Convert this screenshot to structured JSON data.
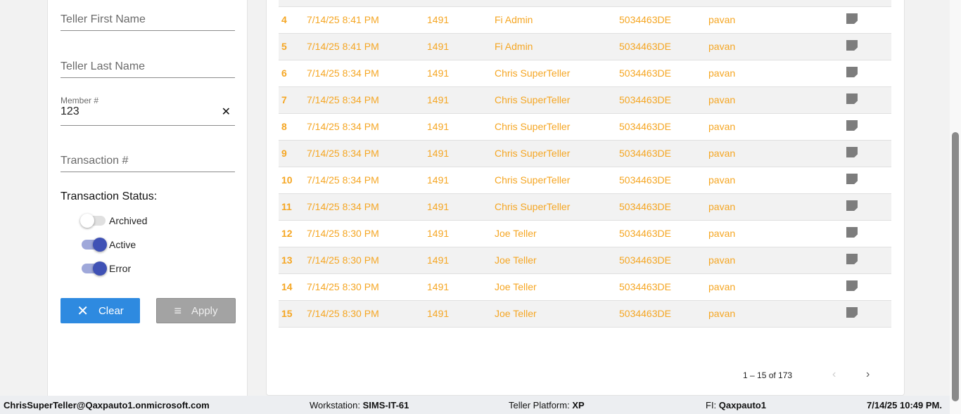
{
  "filters": {
    "teller_first_name": {
      "placeholder": "Teller First Name"
    },
    "teller_last_name": {
      "placeholder": "Teller Last Name"
    },
    "member": {
      "label": "Member #",
      "value": "123"
    },
    "transaction": {
      "placeholder": "Transaction #"
    },
    "status_title": "Transaction Status:",
    "toggles": [
      {
        "label": "Archived",
        "on": false
      },
      {
        "label": "Active",
        "on": true
      },
      {
        "label": "Error",
        "on": true
      }
    ],
    "clear_label": "Clear",
    "apply_label": "Apply"
  },
  "rows": [
    [
      "",
      "",
      "",
      "",
      "",
      "",
      ""
    ],
    [
      "4",
      "7/14/25 8:41 PM",
      "1491",
      "Fi Admin",
      "5034463DE",
      "pavan"
    ],
    [
      "5",
      "7/14/25 8:41 PM",
      "1491",
      "Fi Admin",
      "5034463DE",
      "pavan"
    ],
    [
      "6",
      "7/14/25 8:34 PM",
      "1491",
      "Chris SuperTeller",
      "5034463DE",
      "pavan"
    ],
    [
      "7",
      "7/14/25 8:34 PM",
      "1491",
      "Chris SuperTeller",
      "5034463DE",
      "pavan"
    ],
    [
      "8",
      "7/14/25 8:34 PM",
      "1491",
      "Chris SuperTeller",
      "5034463DE",
      "pavan"
    ],
    [
      "9",
      "7/14/25 8:34 PM",
      "1491",
      "Chris SuperTeller",
      "5034463DE",
      "pavan"
    ],
    [
      "10",
      "7/14/25 8:34 PM",
      "1491",
      "Chris SuperTeller",
      "5034463DE",
      "pavan"
    ],
    [
      "11",
      "7/14/25 8:34 PM",
      "1491",
      "Chris SuperTeller",
      "5034463DE",
      "pavan"
    ],
    [
      "12",
      "7/14/25 8:30 PM",
      "1491",
      "Joe Teller",
      "5034463DE",
      "pavan"
    ],
    [
      "13",
      "7/14/25 8:30 PM",
      "1491",
      "Joe Teller",
      "5034463DE",
      "pavan"
    ],
    [
      "14",
      "7/14/25 8:30 PM",
      "1491",
      "Joe Teller",
      "5034463DE",
      "pavan"
    ],
    [
      "15",
      "7/14/25 8:30 PM",
      "1491",
      "Joe Teller",
      "5034463DE",
      "pavan"
    ]
  ],
  "pagination": {
    "range": "1 – 15 of 173",
    "prev": "‹",
    "next": "›"
  },
  "footer": {
    "user": "ChrisSuperTeller@Qaxpauto1.onmicrosoft.com",
    "workstation_label": "Workstation: ",
    "workstation": "SIMS-IT-61",
    "platform_label": "Teller Platform: ",
    "platform": "XP",
    "fi_label": "FI: ",
    "fi": "Qaxpauto1",
    "datetime": "7/14/25 10:49 PM."
  },
  "colors": {
    "row_text": "#f5a623",
    "accent": "#3f51b5",
    "clear_button": "#2e8ae0"
  }
}
